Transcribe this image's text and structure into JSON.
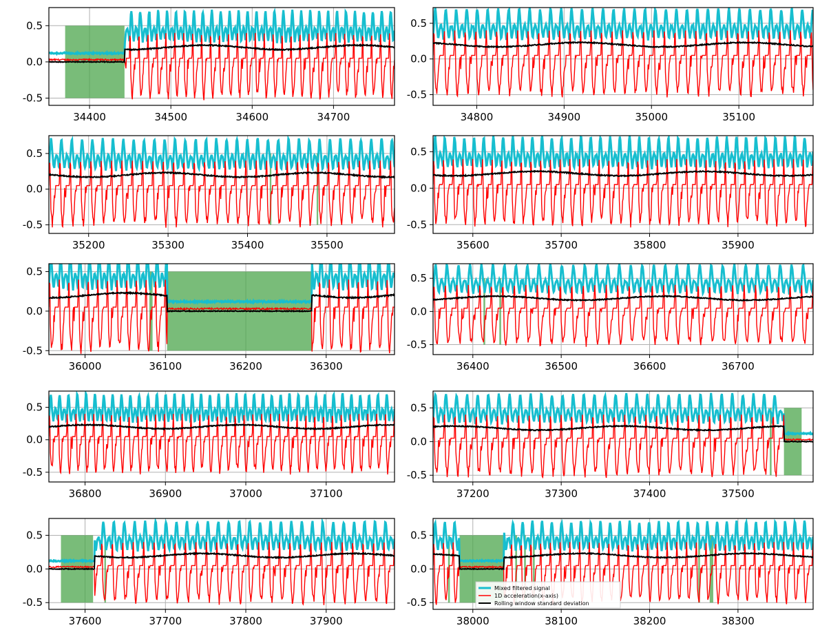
{
  "figure": {
    "legend": [
      "Mixed filtered signal",
      "1D acceleration(x-axis)",
      "Rolling window standard deviation"
    ],
    "colors": {
      "mixed": "#17becf",
      "accel": "#ff0000",
      "rolling": "#000000",
      "shade": "#4ca64c",
      "grid": "#b0b0b0"
    }
  },
  "chart_data": [
    {
      "type": "line",
      "id": "p1",
      "xlim": [
        34350,
        34775
      ],
      "ylim": [
        -0.6,
        0.75
      ],
      "xticks": [
        34400,
        34500,
        34600,
        34700
      ],
      "xtick_labels": [
        "34400",
        "34500",
        "34600",
        "34700"
      ],
      "yticks": [
        -0.5,
        0.0,
        0.5
      ],
      "ytick_labels": [
        "-0.5",
        "0.0",
        "0.5"
      ],
      "grid": true,
      "idle": [
        [
          34350,
          34443
        ]
      ],
      "shaded": [
        [
          34370,
          34443
        ]
      ]
    },
    {
      "type": "line",
      "id": "p2",
      "xlim": [
        34750,
        35185
      ],
      "ylim": [
        -0.65,
        0.72
      ],
      "xticks": [
        34800,
        34900,
        35000,
        35100
      ],
      "xtick_labels": [
        "34800",
        "34900",
        "35000",
        "35100"
      ],
      "yticks": [
        -0.5,
        0.0,
        0.5
      ],
      "ytick_labels": [
        "-0.5",
        "0.0",
        "0.5"
      ],
      "grid": true,
      "idle": [],
      "shaded": []
    },
    {
      "type": "line",
      "id": "p3",
      "xlim": [
        35150,
        35585
      ],
      "ylim": [
        -0.62,
        0.75
      ],
      "xticks": [
        35200,
        35300,
        35400,
        35500
      ],
      "xtick_labels": [
        "35200",
        "35300",
        "35400",
        "35500"
      ],
      "yticks": [
        -0.5,
        0.0,
        0.5
      ],
      "ytick_labels": [
        "-0.5",
        "0.0",
        "0.5"
      ],
      "grid": true,
      "idle": [],
      "shaded": [
        [
          35428,
          35430
        ],
        [
          35487,
          35489
        ]
      ]
    },
    {
      "type": "line",
      "id": "p4",
      "xlim": [
        35555,
        35985
      ],
      "ylim": [
        -0.62,
        0.72
      ],
      "xticks": [
        35600,
        35700,
        35800,
        35900
      ],
      "xtick_labels": [
        "35600",
        "35700",
        "35800",
        "35900"
      ],
      "yticks": [
        -0.5,
        0.0,
        0.5
      ],
      "ytick_labels": [
        "-0.5",
        "0.0",
        "0.5"
      ],
      "grid": true,
      "idle": [],
      "shaded": []
    },
    {
      "type": "line",
      "id": "p5",
      "xlim": [
        35955,
        36385
      ],
      "ylim": [
        -0.55,
        0.6
      ],
      "xticks": [
        36000,
        36100,
        36200,
        36300
      ],
      "xtick_labels": [
        "36000",
        "36100",
        "36200",
        "36300"
      ],
      "yticks": [
        -0.5,
        0.0,
        0.5
      ],
      "ytick_labels": [
        "-0.5",
        "0.0",
        "0.5"
      ],
      "grid": true,
      "idle": [
        [
          36102,
          36282
        ]
      ],
      "shaded": [
        [
          36080,
          36084
        ],
        [
          36102,
          36282
        ]
      ]
    },
    {
      "type": "line",
      "id": "p6",
      "xlim": [
        36355,
        36785
      ],
      "ylim": [
        -0.65,
        0.72
      ],
      "xticks": [
        36400,
        36500,
        36600,
        36700
      ],
      "xtick_labels": [
        "36400",
        "36500",
        "36600",
        "36700"
      ],
      "yticks": [
        -0.5,
        0.0,
        0.5
      ],
      "ytick_labels": [
        "-0.5",
        "0.0",
        "0.5"
      ],
      "grid": true,
      "idle": [],
      "shaded": [
        [
          36412,
          36414
        ],
        [
          36430,
          36432
        ]
      ]
    },
    {
      "type": "line",
      "id": "p7",
      "xlim": [
        36755,
        37185
      ],
      "ylim": [
        -0.65,
        0.75
      ],
      "xticks": [
        36800,
        36900,
        37000,
        37100
      ],
      "xtick_labels": [
        "36800",
        "36900",
        "37000",
        "37100"
      ],
      "yticks": [
        -0.5,
        0.0,
        0.5
      ],
      "ytick_labels": [
        "-0.5",
        "0.0",
        "0.5"
      ],
      "grid": true,
      "idle": [],
      "shaded": []
    },
    {
      "type": "line",
      "id": "p8",
      "xlim": [
        37155,
        37585
      ],
      "ylim": [
        -0.6,
        0.75
      ],
      "xticks": [
        37200,
        37300,
        37400,
        37500
      ],
      "xtick_labels": [
        "37200",
        "37300",
        "37400",
        "37500"
      ],
      "yticks": [
        -0.5,
        0.0,
        0.5
      ],
      "ytick_labels": [
        "-0.5",
        "0.0",
        "0.5"
      ],
      "grid": true,
      "idle": [
        [
          37552,
          37585
        ]
      ],
      "shaded": [
        [
          37536,
          37538
        ],
        [
          37552,
          37572
        ]
      ]
    },
    {
      "type": "line",
      "id": "p9",
      "xlim": [
        37555,
        37985
      ],
      "ylim": [
        -0.6,
        0.75
      ],
      "xticks": [
        37600,
        37700,
        37800,
        37900
      ],
      "xtick_labels": [
        "37600",
        "37700",
        "37800",
        "37900"
      ],
      "yticks": [
        -0.5,
        0.0,
        0.5
      ],
      "ytick_labels": [
        "-0.5",
        "0.0",
        "0.5"
      ],
      "grid": true,
      "idle": [
        [
          37555,
          37612
        ]
      ],
      "shaded": [
        [
          37570,
          37610
        ],
        [
          37624,
          37626
        ]
      ]
    },
    {
      "type": "line",
      "id": "p10",
      "xlim": [
        37955,
        38385
      ],
      "ylim": [
        -0.6,
        0.75
      ],
      "xticks": [
        38000,
        38100,
        38200,
        38300
      ],
      "xtick_labels": [
        "38000",
        "38100",
        "38200",
        "38300"
      ],
      "yticks": [
        -0.5,
        0.0,
        0.5
      ],
      "ytick_labels": [
        "-0.5",
        "0.0",
        "0.5"
      ],
      "grid": true,
      "idle": [
        [
          37985,
          38035
        ]
      ],
      "shaded": [
        [
          37972,
          37974
        ],
        [
          37985,
          38035
        ],
        [
          38048,
          38050
        ],
        [
          38058,
          38060
        ],
        [
          38068,
          38070
        ],
        [
          38255,
          38257
        ],
        [
          38268,
          38272
        ]
      ],
      "legend": true
    }
  ]
}
